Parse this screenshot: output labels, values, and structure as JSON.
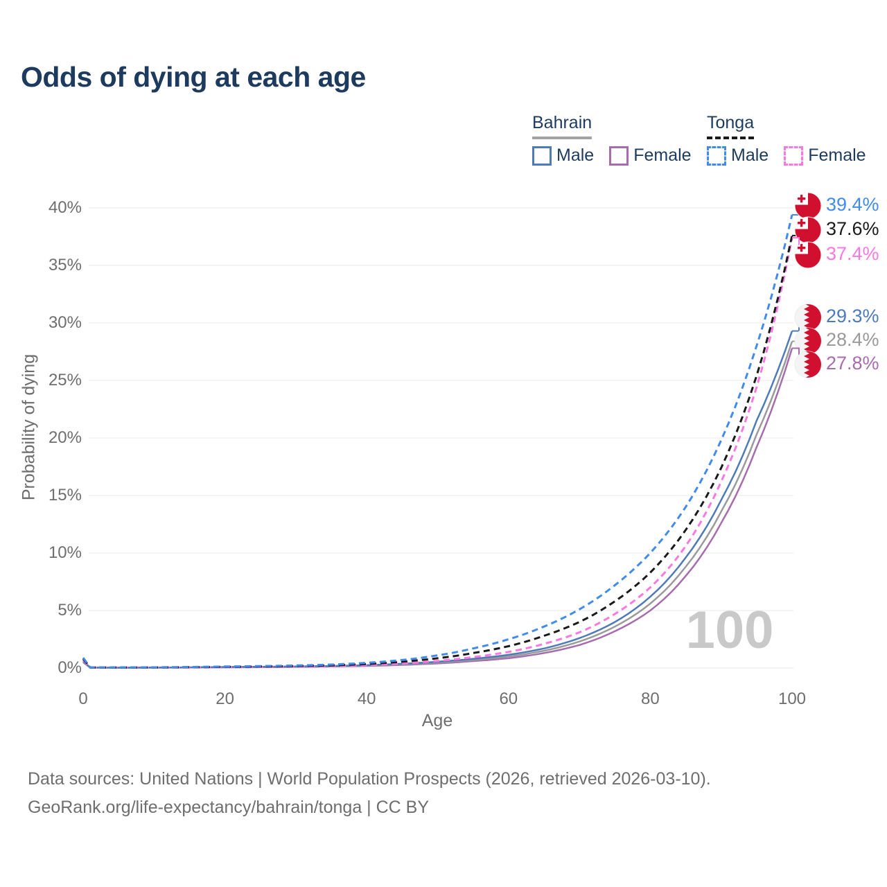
{
  "title": "Odds of dying at each age",
  "watermark": "100",
  "legend": {
    "groups": [
      {
        "country": "Bahrain",
        "dash": false,
        "underline_color": "#a3a3a3",
        "items": [
          {
            "label": "Male",
            "color": "#4d7ab8"
          },
          {
            "label": "Female",
            "color": "#a76cad"
          }
        ]
      },
      {
        "country": "Tonga",
        "dash": true,
        "underline_color": "#1a1a1a",
        "items": [
          {
            "label": "Male",
            "color": "#418bee"
          },
          {
            "label": "Female",
            "color": "#fb78e2"
          }
        ]
      }
    ]
  },
  "chart_data": {
    "type": "line",
    "title": "Odds of dying at each age",
    "xlabel": "Age",
    "ylabel": "Probability of dying",
    "xlim": [
      0,
      100
    ],
    "ylim": [
      0,
      40
    ],
    "x_ticks": [
      0,
      20,
      40,
      60,
      80,
      100
    ],
    "y_ticks": [
      0,
      5,
      10,
      15,
      20,
      25,
      30,
      35,
      40
    ],
    "y_tick_suffix": "%",
    "grid": "horizontal-only",
    "legend_position": "top-right",
    "ages": [
      0,
      1,
      5,
      10,
      15,
      20,
      25,
      30,
      35,
      40,
      45,
      50,
      55,
      60,
      65,
      70,
      75,
      80,
      85,
      90,
      95,
      100
    ],
    "series": [
      {
        "name": "Tonga Male",
        "country": "Tonga",
        "sex": "Male",
        "style": "dashed",
        "color": "#418bee",
        "flag": "tonga",
        "end_label": "39.4%",
        "end_value": 39.4,
        "values": [
          0.9,
          0.06,
          0.05,
          0.06,
          0.09,
          0.13,
          0.17,
          0.22,
          0.3,
          0.45,
          0.7,
          1.1,
          1.7,
          2.5,
          3.6,
          5.1,
          7.2,
          10.0,
          14.0,
          19.8,
          28.0,
          39.4
        ]
      },
      {
        "name": "Tonga Total",
        "country": "Tonga",
        "sex": "Both",
        "style": "dashed",
        "color": "#1a1a1a",
        "flag": "tonga",
        "end_label": "37.6%",
        "end_value": 37.6,
        "values": [
          0.8,
          0.05,
          0.04,
          0.05,
          0.07,
          0.1,
          0.13,
          0.17,
          0.23,
          0.35,
          0.55,
          0.85,
          1.3,
          1.9,
          2.8,
          4.0,
          5.8,
          8.3,
          12.0,
          17.4,
          25.4,
          37.6
        ]
      },
      {
        "name": "Tonga Female",
        "country": "Tonga",
        "sex": "Female",
        "style": "dashed",
        "color": "#fb78e2",
        "flag": "tonga",
        "end_label": "37.4%",
        "end_value": 37.4,
        "values": [
          0.7,
          0.05,
          0.04,
          0.04,
          0.05,
          0.07,
          0.09,
          0.12,
          0.17,
          0.26,
          0.4,
          0.62,
          0.95,
          1.4,
          2.1,
          3.1,
          4.7,
          7.0,
          10.6,
          16.2,
          24.4,
          37.4
        ]
      },
      {
        "name": "Bahrain Male",
        "country": "Bahrain",
        "sex": "Male",
        "style": "solid",
        "color": "#4d7ab8",
        "flag": "bahrain",
        "end_label": "29.3%",
        "end_value": 29.3,
        "values": [
          0.6,
          0.04,
          0.03,
          0.04,
          0.06,
          0.09,
          0.11,
          0.14,
          0.18,
          0.25,
          0.37,
          0.55,
          0.8,
          1.15,
          1.7,
          2.6,
          4.0,
          6.2,
          9.6,
          14.6,
          21.5,
          29.3
        ]
      },
      {
        "name": "Bahrain Total",
        "country": "Bahrain",
        "sex": "Both",
        "style": "solid",
        "color": "#9a9a9a",
        "flag": "bahrain",
        "end_label": "28.4%",
        "end_value": 28.4,
        "values": [
          0.55,
          0.035,
          0.03,
          0.035,
          0.05,
          0.07,
          0.09,
          0.12,
          0.16,
          0.22,
          0.32,
          0.48,
          0.7,
          1.0,
          1.5,
          2.3,
          3.6,
          5.6,
          8.8,
          13.6,
          20.3,
          28.4
        ]
      },
      {
        "name": "Bahrain Female",
        "country": "Bahrain",
        "sex": "Female",
        "style": "solid",
        "color": "#a76cad",
        "flag": "bahrain",
        "end_label": "27.8%",
        "end_value": 27.8,
        "values": [
          0.5,
          0.03,
          0.025,
          0.03,
          0.04,
          0.055,
          0.07,
          0.1,
          0.13,
          0.18,
          0.27,
          0.4,
          0.6,
          0.85,
          1.3,
          2.0,
          3.2,
          5.0,
          8.0,
          12.6,
          19.2,
          27.8
        ]
      }
    ],
    "flag_colors": {
      "red": "#d11030",
      "white": "#f4f4f4"
    }
  },
  "footer": {
    "line1": "Data sources: United Nations | World Population Prospects (2026, retrieved 2026-03-10).",
    "line2": "GeoRank.org/life-expectancy/bahrain/tonga | CC BY"
  }
}
